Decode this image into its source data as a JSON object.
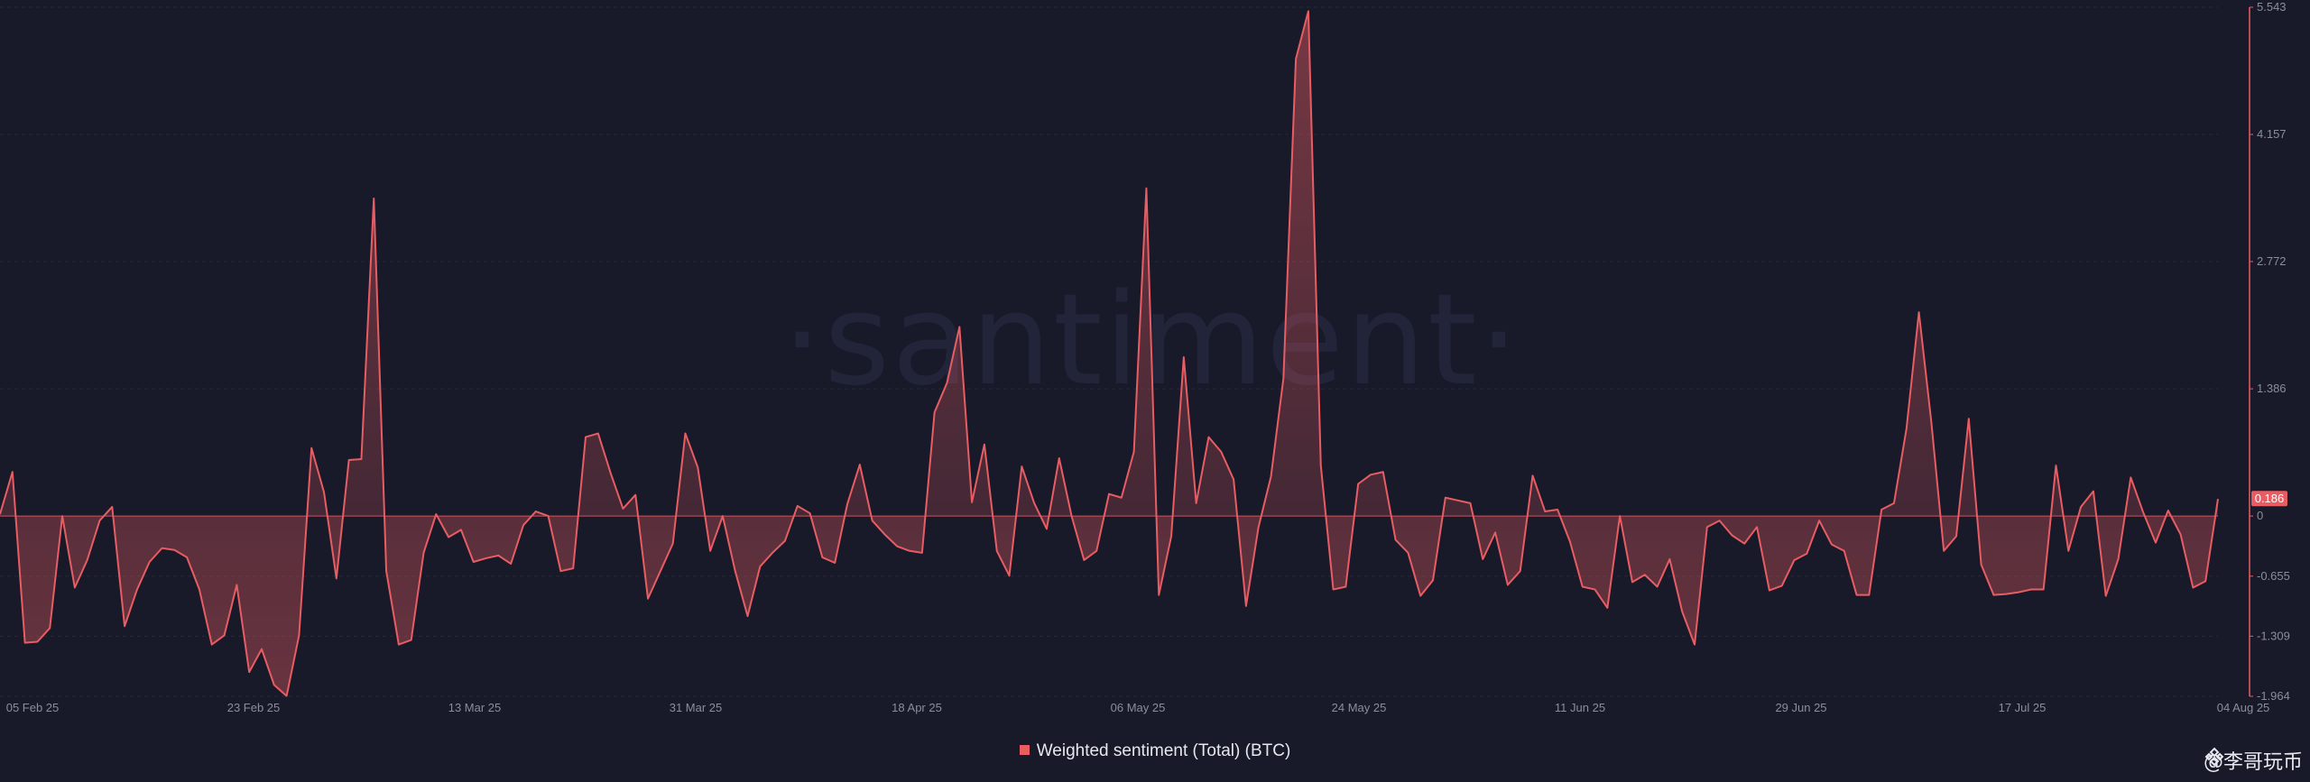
{
  "watermark": "·santiment·",
  "credit": "@李哥玩币",
  "colors": {
    "series": "#e85d63",
    "current_badge": "#e85d63"
  },
  "legend": {
    "label": "Weighted sentiment (Total) (BTC)",
    "position": "bottom-center"
  },
  "current_value_badge": "0.186",
  "chart_data": {
    "type": "area",
    "title": "",
    "xlabel": "",
    "ylabel": "",
    "ylim": [
      -1.964,
      5.543
    ],
    "y_ticks": [
      "5.543",
      "4.157",
      "2.772",
      "1.386",
      "0",
      "-0.655",
      "-1.309",
      "-1.964"
    ],
    "x_tick_labels": [
      "05 Feb 25",
      "23 Feb 25",
      "13 Mar 25",
      "31 Mar 25",
      "18 Apr 25",
      "06 May 25",
      "24 May 25",
      "11 Jun 25",
      "29 Jun 25",
      "17 Jul 25",
      "04 Aug 25"
    ],
    "x_start": "2025-02-05",
    "x_end": "2025-08-04",
    "baseline": 0,
    "grid": true,
    "series": [
      {
        "name": "Weighted sentiment (Total) (BTC)",
        "values": [
          0.02,
          0.48,
          -1.38,
          -1.37,
          -1.22,
          0.0,
          -0.78,
          -0.48,
          -0.05,
          0.1,
          -1.2,
          -0.8,
          -0.5,
          -0.35,
          -0.37,
          -0.45,
          -0.8,
          -1.4,
          -1.3,
          -0.75,
          -1.7,
          -1.45,
          -1.84,
          -1.96,
          -1.3,
          0.74,
          0.26,
          -0.68,
          0.61,
          0.62,
          3.46,
          -0.6,
          -1.4,
          -1.35,
          -0.4,
          0.02,
          -0.23,
          -0.15,
          -0.5,
          -0.46,
          -0.43,
          -0.52,
          -0.1,
          0.05,
          0.0,
          -0.6,
          -0.57,
          0.86,
          0.9,
          0.47,
          0.08,
          0.23,
          -0.9,
          -0.6,
          -0.3,
          0.9,
          0.53,
          -0.38,
          0.0,
          -0.6,
          -1.09,
          -0.55,
          -0.4,
          -0.27,
          0.11,
          0.03,
          -0.45,
          -0.51,
          0.13,
          0.56,
          -0.05,
          -0.2,
          -0.33,
          -0.38,
          -0.4,
          1.13,
          1.45,
          2.06,
          0.15,
          0.78,
          -0.38,
          -0.65,
          0.54,
          0.14,
          -0.14,
          0.63,
          0.0,
          -0.48,
          -0.38,
          0.24,
          0.2,
          0.7,
          3.57,
          -0.86,
          -0.22,
          1.73,
          0.14,
          0.86,
          0.7,
          0.4,
          -0.98,
          -0.12,
          0.43,
          1.5,
          4.98,
          5.5,
          0.55,
          -0.8,
          -0.77,
          0.35,
          0.45,
          0.48,
          -0.26,
          -0.4,
          -0.87,
          -0.7,
          0.2,
          0.17,
          0.14,
          -0.47,
          -0.18,
          -0.75,
          -0.6,
          0.44,
          0.05,
          0.07,
          -0.28,
          -0.77,
          -0.8,
          -1.0,
          0.0,
          -0.72,
          -0.64,
          -0.77,
          -0.47,
          -1.04,
          -1.4,
          -0.12,
          -0.05,
          -0.21,
          -0.3,
          -0.12,
          -0.81,
          -0.76,
          -0.48,
          -0.41,
          -0.05,
          -0.31,
          -0.38,
          -0.86,
          -0.86,
          0.07,
          0.14,
          0.95,
          2.22,
          1.02,
          -0.38,
          -0.22,
          1.06,
          -0.53,
          -0.86,
          -0.85,
          -0.83,
          -0.8,
          -0.8,
          0.55,
          -0.38,
          0.1,
          0.27,
          -0.87,
          -0.47,
          0.42,
          0.04,
          -0.29,
          0.06,
          -0.2,
          -0.78,
          -0.71,
          0.186
        ]
      }
    ]
  }
}
